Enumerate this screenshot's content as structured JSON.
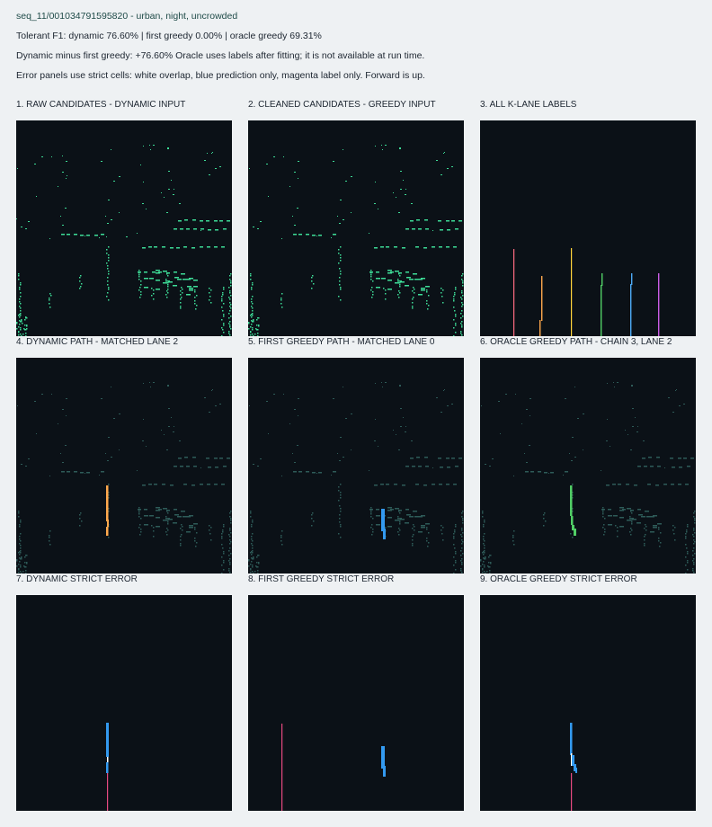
{
  "header": {
    "title": "seq_11/001034791595820 - urban, night, uncrowded",
    "line1": "Tolerant F1: dynamic 76.60% | first greedy 0.00% | oracle greedy 69.31%",
    "line2": "Dynamic minus first greedy: +76.60% Oracle uses labels after fitting; it is not available at run time.",
    "line3": "Error panels use strict cells: white overlap, blue prediction only, magenta label only. Forward is up."
  },
  "panels": [
    {
      "label": "1. RAW CANDIDATES - DYNAMIC INPUT"
    },
    {
      "label": "2. CLEANED CANDIDATES - GREEDY INPUT"
    },
    {
      "label": "3. ALL K-LANE LABELS"
    },
    {
      "label": "4. DYNAMIC PATH - MATCHED LANE 2"
    },
    {
      "label": "5. FIRST GREEDY PATH - MATCHED LANE 0"
    },
    {
      "label": "6. ORACLE GREEDY PATH - CHAIN 3, LANE 2"
    },
    {
      "label": "7. DYNAMIC STRICT ERROR"
    },
    {
      "label": "8. FIRST GREEDY STRICT ERROR"
    },
    {
      "label": "9. ORACLE GREEDY STRICT ERROR"
    }
  ],
  "colors": {
    "panel_bg": "#0b1117",
    "candidate": "#3ddc97",
    "candidate_dim": "#2e5b58",
    "lane_pink": "#ff6b81",
    "lane_orange": "#ffa94d",
    "lane_yellow": "#ffd43b",
    "lane_green": "#51cf66",
    "lane_blue": "#4dabf7",
    "lane_purple": "#cc5de8",
    "error_pred": "#339af0",
    "error_label": "#e64980",
    "error_overlap": "#ffffff"
  }
}
